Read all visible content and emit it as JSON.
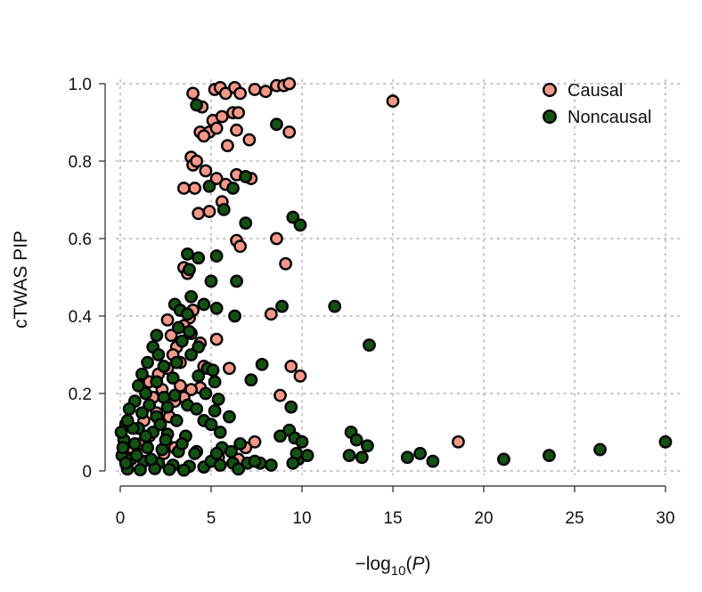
{
  "chart_data": {
    "type": "scatter",
    "xlabel": "−log10(P)",
    "ylabel": "cTWAS PIP",
    "xlim": [
      0,
      30
    ],
    "ylim": [
      0,
      1
    ],
    "x_ticks": [
      "0",
      "5",
      "10",
      "15",
      "20",
      "25",
      "30"
    ],
    "y_ticks": [
      "0",
      "0.2",
      "0.4",
      "0.6",
      "0.8",
      "1.0"
    ],
    "grid": "dotted",
    "legend_position": "top-right",
    "series": [
      {
        "name": "Causal",
        "color": "#f4988a",
        "points": [
          [
            4.0,
            0.975
          ],
          [
            4.5,
            0.94
          ],
          [
            5.2,
            0.985
          ],
          [
            5.5,
            0.99
          ],
          [
            5.8,
            0.975
          ],
          [
            6.3,
            0.99
          ],
          [
            6.6,
            0.975
          ],
          [
            7.4,
            0.985
          ],
          [
            8.0,
            0.98
          ],
          [
            8.6,
            0.995
          ],
          [
            9.0,
            0.995
          ],
          [
            9.3,
            1.0
          ],
          [
            15.0,
            0.955
          ],
          [
            5.1,
            0.905
          ],
          [
            5.6,
            0.915
          ],
          [
            6.2,
            0.925
          ],
          [
            6.5,
            0.925
          ],
          [
            4.4,
            0.875
          ],
          [
            4.9,
            0.875
          ],
          [
            5.3,
            0.885
          ],
          [
            6.4,
            0.88
          ],
          [
            7.1,
            0.855
          ],
          [
            4.6,
            0.865
          ],
          [
            5.9,
            0.84
          ],
          [
            9.3,
            0.875
          ],
          [
            3.9,
            0.81
          ],
          [
            4.0,
            0.79
          ],
          [
            4.2,
            0.8
          ],
          [
            4.7,
            0.775
          ],
          [
            5.3,
            0.755
          ],
          [
            6.4,
            0.765
          ],
          [
            7.2,
            0.755
          ],
          [
            3.5,
            0.73
          ],
          [
            4.1,
            0.73
          ],
          [
            5.8,
            0.74
          ],
          [
            4.3,
            0.665
          ],
          [
            4.9,
            0.67
          ],
          [
            5.6,
            0.695
          ],
          [
            6.4,
            0.595
          ],
          [
            6.6,
            0.58
          ],
          [
            8.6,
            0.6
          ],
          [
            9.1,
            0.535
          ],
          [
            3.5,
            0.525
          ],
          [
            3.7,
            0.51
          ],
          [
            8.3,
            0.405
          ],
          [
            8.8,
            0.195
          ],
          [
            9.4,
            0.27
          ],
          [
            9.9,
            0.245
          ],
          [
            4.0,
            0.415
          ],
          [
            3.8,
            0.395
          ],
          [
            3.5,
            0.375
          ],
          [
            3.9,
            0.355
          ],
          [
            4.4,
            0.33
          ],
          [
            5.3,
            0.34
          ],
          [
            4.6,
            0.27
          ],
          [
            6.0,
            0.265
          ],
          [
            4.4,
            0.215
          ],
          [
            3.9,
            0.21
          ],
          [
            3.5,
            0.19
          ],
          [
            2.6,
            0.39
          ],
          [
            2.8,
            0.35
          ],
          [
            3.1,
            0.32
          ],
          [
            2.9,
            0.3
          ],
          [
            3.3,
            0.28
          ],
          [
            2.6,
            0.265
          ],
          [
            2.1,
            0.25
          ],
          [
            2.3,
            0.21
          ],
          [
            1.8,
            0.19
          ],
          [
            2.7,
            0.14
          ],
          [
            2.2,
            0.12
          ],
          [
            1.3,
            0.13
          ],
          [
            3.0,
            0.18
          ],
          [
            2.0,
            0.15
          ],
          [
            3.3,
            0.22
          ],
          [
            1.6,
            0.23
          ],
          [
            7.4,
            0.075
          ],
          [
            6.9,
            0.06
          ],
          [
            18.6,
            0.075
          ],
          [
            4.2,
            0.05
          ],
          [
            5.4,
            0.035
          ],
          [
            6.5,
            0.03
          ],
          [
            3.0,
            0.06
          ],
          [
            2.4,
            0.045
          ],
          [
            1.6,
            0.09
          ],
          [
            1.1,
            0.07
          ],
          [
            0.6,
            0.06
          ]
        ]
      },
      {
        "name": "Noncausal",
        "color": "#145214",
        "points": [
          [
            4.2,
            0.945
          ],
          [
            8.6,
            0.895
          ],
          [
            4.9,
            0.735
          ],
          [
            6.2,
            0.73
          ],
          [
            6.9,
            0.76
          ],
          [
            5.7,
            0.675
          ],
          [
            6.9,
            0.64
          ],
          [
            9.5,
            0.655
          ],
          [
            9.9,
            0.635
          ],
          [
            3.7,
            0.56
          ],
          [
            4.3,
            0.55
          ],
          [
            5.3,
            0.555
          ],
          [
            3.8,
            0.52
          ],
          [
            5.0,
            0.49
          ],
          [
            6.4,
            0.49
          ],
          [
            3.9,
            0.45
          ],
          [
            4.6,
            0.43
          ],
          [
            5.3,
            0.42
          ],
          [
            6.3,
            0.4
          ],
          [
            8.9,
            0.425
          ],
          [
            11.8,
            0.425
          ],
          [
            13.7,
            0.325
          ],
          [
            3.0,
            0.43
          ],
          [
            3.3,
            0.415
          ],
          [
            3.7,
            0.405
          ],
          [
            3.2,
            0.37
          ],
          [
            3.8,
            0.36
          ],
          [
            3.4,
            0.335
          ],
          [
            4.3,
            0.32
          ],
          [
            3.9,
            0.3
          ],
          [
            3.1,
            0.28
          ],
          [
            4.8,
            0.265
          ],
          [
            5.1,
            0.26
          ],
          [
            4.3,
            0.245
          ],
          [
            5.2,
            0.23
          ],
          [
            4.7,
            0.2
          ],
          [
            5.4,
            0.185
          ],
          [
            3.7,
            0.17
          ],
          [
            4.2,
            0.16
          ],
          [
            5.2,
            0.155
          ],
          [
            6.0,
            0.14
          ],
          [
            4.6,
            0.13
          ],
          [
            5.0,
            0.12
          ],
          [
            5.5,
            0.1
          ],
          [
            7.8,
            0.275
          ],
          [
            7.2,
            0.235
          ],
          [
            9.4,
            0.165
          ],
          [
            2.0,
            0.35
          ],
          [
            1.8,
            0.32
          ],
          [
            2.1,
            0.3
          ],
          [
            1.5,
            0.28
          ],
          [
            2.4,
            0.27
          ],
          [
            1.2,
            0.25
          ],
          [
            2.0,
            0.23
          ],
          [
            2.9,
            0.24
          ],
          [
            1.0,
            0.22
          ],
          [
            1.4,
            0.2
          ],
          [
            2.4,
            0.19
          ],
          [
            3.0,
            0.195
          ],
          [
            0.8,
            0.18
          ],
          [
            1.6,
            0.17
          ],
          [
            2.6,
            0.165
          ],
          [
            0.5,
            0.16
          ],
          [
            1.2,
            0.15
          ],
          [
            2.0,
            0.14
          ],
          [
            3.1,
            0.13
          ],
          [
            0.3,
            0.12
          ],
          [
            1.0,
            0.11
          ],
          [
            1.8,
            0.1
          ],
          [
            2.6,
            0.095
          ],
          [
            3.6,
            0.09
          ],
          [
            0.2,
            0.08
          ],
          [
            0.8,
            0.07
          ],
          [
            1.5,
            0.06
          ],
          [
            2.3,
            0.055
          ],
          [
            3.2,
            0.05
          ],
          [
            4.1,
            0.045
          ],
          [
            0.1,
            0.04
          ],
          [
            0.6,
            0.03
          ],
          [
            1.3,
            0.025
          ],
          [
            2.1,
            0.02
          ],
          [
            2.9,
            0.015
          ],
          [
            3.8,
            0.012
          ],
          [
            4.6,
            0.01
          ],
          [
            0.4,
            0.005
          ],
          [
            1.1,
            0.003
          ],
          [
            1.9,
            0.006
          ],
          [
            2.7,
            0.004
          ],
          [
            3.5,
            0.002
          ],
          [
            0.05,
            0.1
          ],
          [
            0.15,
            0.06
          ],
          [
            0.3,
            0.02
          ],
          [
            0.9,
            0.04
          ],
          [
            1.7,
            0.03
          ],
          [
            2.5,
            0.08
          ],
          [
            3.4,
            0.07
          ],
          [
            0.7,
            0.11
          ],
          [
            1.4,
            0.09
          ],
          [
            2.2,
            0.12
          ],
          [
            0.4,
            0.13
          ],
          [
            5.6,
            0.06
          ],
          [
            6.1,
            0.05
          ],
          [
            6.6,
            0.07
          ],
          [
            7.0,
            0.02
          ],
          [
            7.7,
            0.02
          ],
          [
            8.3,
            0.015
          ],
          [
            8.8,
            0.09
          ],
          [
            9.3,
            0.105
          ],
          [
            9.6,
            0.085
          ],
          [
            9.8,
            0.03
          ],
          [
            10.3,
            0.04
          ],
          [
            10.0,
            0.075
          ],
          [
            9.7,
            0.045
          ],
          [
            5.0,
            0.025
          ],
          [
            5.5,
            0.015
          ],
          [
            6.2,
            0.02
          ],
          [
            5.3,
            0.045
          ],
          [
            6.5,
            0.005
          ],
          [
            7.4,
            0.025
          ],
          [
            9.5,
            0.02
          ],
          [
            12.6,
            0.04
          ],
          [
            12.7,
            0.1
          ],
          [
            13.0,
            0.08
          ],
          [
            13.3,
            0.035
          ],
          [
            13.6,
            0.065
          ],
          [
            15.8,
            0.035
          ],
          [
            16.5,
            0.045
          ],
          [
            17.2,
            0.025
          ],
          [
            21.1,
            0.03
          ],
          [
            23.6,
            0.04
          ],
          [
            26.4,
            0.055
          ],
          [
            30.0,
            0.075
          ]
        ]
      }
    ]
  }
}
